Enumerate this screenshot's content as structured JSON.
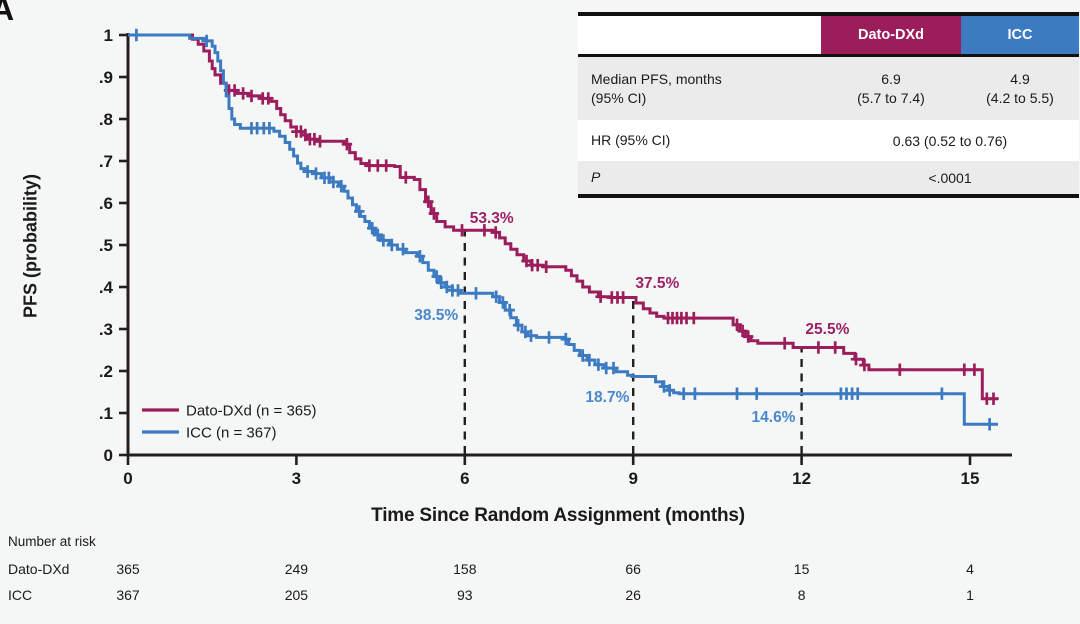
{
  "panel_label": "A",
  "colors": {
    "dato": "#9C1D5C",
    "icc": "#3C7BC2",
    "dato_annotation": "#9C2166",
    "icc_annotation": "#4A87CD",
    "axis": "#231F20",
    "text": "#1A1A1A",
    "table_stripe": "#EBEBEB",
    "background": "#F5F6F6"
  },
  "legend": {
    "items": [
      {
        "label": "Dato-DXd (n = 365)",
        "color_key": "dato"
      },
      {
        "label": "ICC (n = 367)",
        "color_key": "icc"
      }
    ]
  },
  "results_table": {
    "header": {
      "blank": "",
      "col_dato": "Dato-DXd",
      "col_icc": "ICC"
    },
    "median_row": {
      "label_l1": "Median PFS, months",
      "label_l2": "(95% CI)",
      "dato_l1": "6.9",
      "dato_l2": "(5.7 to 7.4)",
      "icc_l1": "4.9",
      "icc_l2": "(4.2 to 5.5)"
    },
    "hr_row": {
      "label": "HR (95% CI)",
      "value": "0.63 (0.52 to 0.76)"
    },
    "p_row": {
      "label": "P",
      "value": "<.0001"
    }
  },
  "risk_table": {
    "title": "Number at risk",
    "rows": [
      {
        "label": "Dato-DXd",
        "values": [
          "365",
          "249",
          "158",
          "66",
          "15",
          "4"
        ]
      },
      {
        "label": "ICC",
        "values": [
          "367",
          "205",
          "93",
          "26",
          "8",
          "1"
        ]
      }
    ]
  },
  "chart_data": {
    "type": "line",
    "subtype": "kaplan_meier_step",
    "title": "",
    "xlabel": "Time Since Random Assignment (months)",
    "ylabel": "PFS (probability)",
    "xlim": [
      0,
      15.75
    ],
    "ylim": [
      0,
      1
    ],
    "grid": false,
    "legend_position": "inside-lower-left",
    "xticks": [
      0,
      3,
      6,
      9,
      12,
      15
    ],
    "yticks": [
      {
        "v": 0,
        "label": "0"
      },
      {
        "v": 0.1,
        "label": ".1"
      },
      {
        "v": 0.2,
        "label": ".2"
      },
      {
        "v": 0.3,
        "label": ".3"
      },
      {
        "v": 0.4,
        "label": ".4"
      },
      {
        "v": 0.5,
        "label": ".5"
      },
      {
        "v": 0.6,
        "label": ".6"
      },
      {
        "v": 0.7,
        "label": ".7"
      },
      {
        "v": 0.8,
        "label": ".8"
      },
      {
        "v": 0.9,
        "label": ".9"
      },
      {
        "v": 1,
        "label": "1"
      }
    ],
    "dashed_guides": [
      {
        "x": 6,
        "top": 0.533
      },
      {
        "x": 9,
        "top": 0.375
      },
      {
        "x": 12,
        "top": 0.255
      }
    ],
    "annotations": [
      {
        "label": "53.3%",
        "x": 6.48,
        "y": 0.564,
        "series": "dato"
      },
      {
        "label": "38.5%",
        "x": 5.49,
        "y": 0.333,
        "series": "icc"
      },
      {
        "label": "37.5%",
        "x": 9.43,
        "y": 0.41,
        "series": "dato"
      },
      {
        "label": "18.7%",
        "x": 8.54,
        "y": 0.138,
        "series": "icc"
      },
      {
        "label": "25.5%",
        "x": 12.46,
        "y": 0.3,
        "series": "dato"
      },
      {
        "label": "14.6%",
        "x": 11.5,
        "y": 0.09,
        "series": "icc"
      }
    ],
    "series": [
      {
        "name": "Dato-DXd",
        "n": 365,
        "color_key": "dato",
        "median_pfs_months": 6.9,
        "median_ci": "5.7 to 7.4",
        "steps": [
          [
            0,
            1.0
          ],
          [
            1.05,
            1.0
          ],
          [
            1.15,
            0.99
          ],
          [
            1.25,
            0.978
          ],
          [
            1.35,
            0.962
          ],
          [
            1.45,
            0.938
          ],
          [
            1.5,
            0.92
          ],
          [
            1.55,
            0.905
          ],
          [
            1.65,
            0.885
          ],
          [
            1.75,
            0.868
          ],
          [
            1.95,
            0.861
          ],
          [
            2.15,
            0.855
          ],
          [
            2.35,
            0.849
          ],
          [
            2.55,
            0.842
          ],
          [
            2.65,
            0.825
          ],
          [
            2.72,
            0.81
          ],
          [
            2.8,
            0.796
          ],
          [
            2.9,
            0.781
          ],
          [
            3.0,
            0.77
          ],
          [
            3.1,
            0.762
          ],
          [
            3.2,
            0.752
          ],
          [
            3.35,
            0.747
          ],
          [
            3.85,
            0.74
          ],
          [
            3.95,
            0.72
          ],
          [
            4.05,
            0.705
          ],
          [
            4.15,
            0.694
          ],
          [
            4.25,
            0.689
          ],
          [
            4.75,
            0.687
          ],
          [
            4.85,
            0.661
          ],
          [
            5.1,
            0.656
          ],
          [
            5.2,
            0.632
          ],
          [
            5.3,
            0.603
          ],
          [
            5.4,
            0.575
          ],
          [
            5.5,
            0.556
          ],
          [
            5.65,
            0.543
          ],
          [
            5.8,
            0.535
          ],
          [
            6.5,
            0.53
          ],
          [
            6.62,
            0.517
          ],
          [
            6.72,
            0.503
          ],
          [
            6.82,
            0.49
          ],
          [
            6.93,
            0.477
          ],
          [
            7.05,
            0.462
          ],
          [
            7.18,
            0.452
          ],
          [
            7.4,
            0.448
          ],
          [
            7.8,
            0.44
          ],
          [
            7.9,
            0.427
          ],
          [
            8.0,
            0.414
          ],
          [
            8.1,
            0.4
          ],
          [
            8.22,
            0.388
          ],
          [
            8.38,
            0.377
          ],
          [
            8.6,
            0.375
          ],
          [
            9.05,
            0.362
          ],
          [
            9.18,
            0.348
          ],
          [
            9.3,
            0.338
          ],
          [
            9.42,
            0.33
          ],
          [
            9.55,
            0.326
          ],
          [
            10.78,
            0.31
          ],
          [
            10.9,
            0.295
          ],
          [
            11.0,
            0.282
          ],
          [
            11.1,
            0.272
          ],
          [
            11.22,
            0.266
          ],
          [
            11.85,
            0.256
          ],
          [
            12.75,
            0.242
          ],
          [
            12.95,
            0.228
          ],
          [
            13.1,
            0.214
          ],
          [
            13.2,
            0.203
          ],
          [
            15.22,
            0.134
          ],
          [
            15.5,
            0.134
          ]
        ],
        "censors": [
          1.8,
          1.9,
          2.05,
          2.2,
          2.4,
          2.5,
          3.0,
          3.08,
          3.16,
          3.24,
          3.32,
          3.42,
          3.9,
          4.3,
          4.45,
          4.6,
          4.95,
          5.35,
          5.45,
          5.95,
          6.35,
          6.55,
          7.1,
          7.2,
          7.3,
          7.45,
          8.42,
          8.62,
          8.72,
          8.82,
          9.62,
          9.7,
          9.78,
          9.86,
          9.95,
          10.08,
          10.85,
          10.95,
          11.05,
          11.7,
          12.3,
          12.6,
          12.97,
          13.12,
          13.75,
          14.9,
          15.08,
          15.3,
          15.42
        ]
      },
      {
        "name": "ICC",
        "n": 367,
        "color_key": "icc",
        "median_pfs_months": 4.9,
        "median_ci": "4.2 to 5.5",
        "steps": [
          [
            0,
            1.0
          ],
          [
            1.05,
            1.0
          ],
          [
            1.1,
            0.992
          ],
          [
            1.4,
            0.986
          ],
          [
            1.5,
            0.973
          ],
          [
            1.55,
            0.958
          ],
          [
            1.6,
            0.938
          ],
          [
            1.65,
            0.915
          ],
          [
            1.7,
            0.885
          ],
          [
            1.75,
            0.855
          ],
          [
            1.8,
            0.825
          ],
          [
            1.85,
            0.8
          ],
          [
            1.9,
            0.787
          ],
          [
            2.0,
            0.778
          ],
          [
            2.6,
            0.771
          ],
          [
            2.7,
            0.759
          ],
          [
            2.8,
            0.744
          ],
          [
            2.88,
            0.728
          ],
          [
            2.95,
            0.712
          ],
          [
            3.02,
            0.695
          ],
          [
            3.08,
            0.682
          ],
          [
            3.15,
            0.675
          ],
          [
            3.3,
            0.67
          ],
          [
            3.45,
            0.66
          ],
          [
            3.6,
            0.65
          ],
          [
            3.75,
            0.64
          ],
          [
            3.85,
            0.628
          ],
          [
            3.92,
            0.612
          ],
          [
            4.0,
            0.596
          ],
          [
            4.07,
            0.58
          ],
          [
            4.14,
            0.568
          ],
          [
            4.22,
            0.556
          ],
          [
            4.3,
            0.54
          ],
          [
            4.4,
            0.524
          ],
          [
            4.5,
            0.511
          ],
          [
            4.65,
            0.5
          ],
          [
            4.8,
            0.49
          ],
          [
            4.95,
            0.482
          ],
          [
            5.15,
            0.473
          ],
          [
            5.25,
            0.458
          ],
          [
            5.35,
            0.44
          ],
          [
            5.45,
            0.425
          ],
          [
            5.55,
            0.41
          ],
          [
            5.65,
            0.4
          ],
          [
            5.78,
            0.392
          ],
          [
            5.92,
            0.385
          ],
          [
            6.5,
            0.377
          ],
          [
            6.62,
            0.363
          ],
          [
            6.72,
            0.345
          ],
          [
            6.82,
            0.327
          ],
          [
            6.92,
            0.309
          ],
          [
            7.02,
            0.293
          ],
          [
            7.12,
            0.284
          ],
          [
            7.28,
            0.28
          ],
          [
            7.75,
            0.276
          ],
          [
            7.85,
            0.263
          ],
          [
            7.95,
            0.249
          ],
          [
            8.05,
            0.237
          ],
          [
            8.18,
            0.226
          ],
          [
            8.32,
            0.215
          ],
          [
            8.48,
            0.207
          ],
          [
            8.7,
            0.198
          ],
          [
            8.9,
            0.19
          ],
          [
            8.98,
            0.187
          ],
          [
            9.4,
            0.174
          ],
          [
            9.52,
            0.163
          ],
          [
            9.62,
            0.154
          ],
          [
            9.72,
            0.148
          ],
          [
            9.82,
            0.146
          ],
          [
            14.9,
            0.073
          ],
          [
            15.5,
            0.073
          ]
        ],
        "censors": [
          0.15,
          1.4,
          2.2,
          2.3,
          2.42,
          2.52,
          3.2,
          3.35,
          3.5,
          3.58,
          3.66,
          3.8,
          4.12,
          4.35,
          4.45,
          4.55,
          4.7,
          4.9,
          5.2,
          5.5,
          5.58,
          5.68,
          5.78,
          5.88,
          6.2,
          6.56,
          6.68,
          6.8,
          6.95,
          7.08,
          7.18,
          7.5,
          7.8,
          8.1,
          8.22,
          8.38,
          8.52,
          8.65,
          9.55,
          9.65,
          9.9,
          10.1,
          10.85,
          11.2,
          12.7,
          12.8,
          12.9,
          13.0,
          14.5,
          15.35
        ]
      }
    ],
    "hr": "0.63 (0.52 to 0.76)",
    "p_value": "<.0001"
  }
}
